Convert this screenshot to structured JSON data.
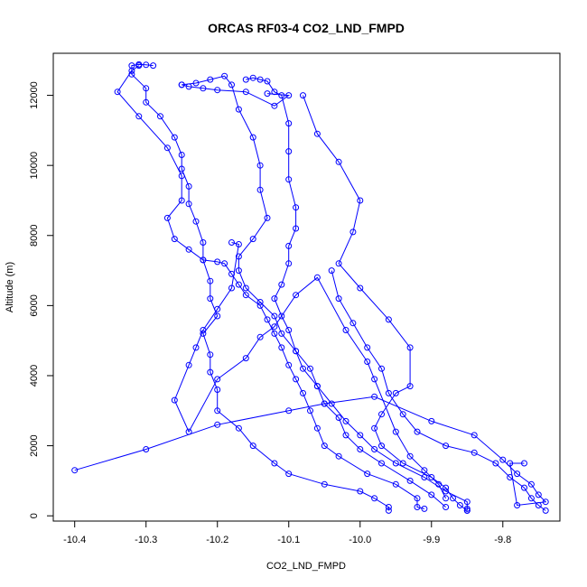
{
  "chart_data": {
    "type": "scatter",
    "title": "ORCAS RF03-4 CO2_LND_FMPD",
    "xlabel": "CO2_LND_FMPD",
    "ylabel": "Altitude (m)",
    "xlim": [
      -10.43,
      -9.72
    ],
    "ylim": [
      -150,
      13200
    ],
    "x_ticks": [
      -10.4,
      -10.3,
      -10.2,
      -10.1,
      -10.0,
      -9.9,
      -9.8
    ],
    "x_tick_labels": [
      "-10.4",
      "-10.3",
      "-10.2",
      "-10.1",
      "-10.0",
      "-9.9",
      "-9.8"
    ],
    "y_ticks": [
      0,
      2000,
      4000,
      6000,
      8000,
      10000,
      12000
    ],
    "y_tick_labels": [
      "0",
      "2000",
      "4000",
      "6000",
      "8000",
      "10000",
      "12000"
    ],
    "grid": false,
    "marker": "open-circle",
    "color": "#0000ff",
    "series": [
      {
        "points": [
          [
            -9.96,
            150
          ],
          [
            -9.96,
            250
          ],
          [
            -9.98,
            500
          ],
          [
            -10.0,
            700
          ],
          [
            -10.05,
            900
          ],
          [
            -10.1,
            1200
          ],
          [
            -10.12,
            1500
          ],
          [
            -10.15,
            2000
          ],
          [
            -10.17,
            2500
          ],
          [
            -10.2,
            3000
          ],
          [
            -10.2,
            3600
          ],
          [
            -10.21,
            4100
          ],
          [
            -10.21,
            4600
          ],
          [
            -10.22,
            5200
          ],
          [
            -10.2,
            5700
          ],
          [
            -10.21,
            6200
          ],
          [
            -10.21,
            6700
          ],
          [
            -10.22,
            7300
          ],
          [
            -10.22,
            7800
          ],
          [
            -10.23,
            8400
          ],
          [
            -10.24,
            8900
          ],
          [
            -10.24,
            9400
          ],
          [
            -10.25,
            9900
          ],
          [
            -10.25,
            10300
          ],
          [
            -10.26,
            10800
          ],
          [
            -10.28,
            11400
          ],
          [
            -10.3,
            11800
          ],
          [
            -10.3,
            12200
          ],
          [
            -10.32,
            12600
          ],
          [
            -10.32,
            12850
          ],
          [
            -10.31,
            12880
          ],
          [
            -10.3,
            12870
          ],
          [
            -10.29,
            12850
          ]
        ]
      },
      {
        "points": [
          [
            -10.31,
            12850
          ],
          [
            -10.32,
            12700
          ],
          [
            -10.34,
            12100
          ],
          [
            -10.31,
            11400
          ],
          [
            -10.27,
            10500
          ],
          [
            -10.25,
            9700
          ],
          [
            -10.25,
            9000
          ],
          [
            -10.27,
            8500
          ],
          [
            -10.26,
            7900
          ],
          [
            -10.24,
            7600
          ],
          [
            -10.22,
            7300
          ],
          [
            -10.2,
            7250
          ],
          [
            -10.19,
            7200
          ],
          [
            -10.18,
            6900
          ],
          [
            -10.17,
            6600
          ],
          [
            -10.16,
            6300
          ],
          [
            -10.14,
            6000
          ],
          [
            -10.13,
            5600
          ],
          [
            -10.12,
            5200
          ],
          [
            -10.11,
            4800
          ],
          [
            -10.1,
            4300
          ],
          [
            -10.09,
            3900
          ],
          [
            -10.08,
            3500
          ],
          [
            -10.07,
            3000
          ],
          [
            -10.06,
            2500
          ],
          [
            -10.05,
            2000
          ],
          [
            -10.03,
            1700
          ],
          [
            -9.99,
            1200
          ],
          [
            -9.95,
            900
          ],
          [
            -9.92,
            500
          ],
          [
            -9.92,
            250
          ],
          [
            -9.91,
            200
          ]
        ]
      },
      {
        "points": [
          [
            -10.25,
            12300
          ],
          [
            -10.23,
            12350
          ],
          [
            -10.21,
            12450
          ],
          [
            -10.19,
            12550
          ],
          [
            -10.18,
            12300
          ],
          [
            -10.17,
            11600
          ],
          [
            -10.15,
            10800
          ],
          [
            -10.14,
            10000
          ],
          [
            -10.14,
            9300
          ],
          [
            -10.13,
            8500
          ],
          [
            -10.15,
            7900
          ],
          [
            -10.17,
            7400
          ],
          [
            -10.17,
            7000
          ],
          [
            -10.16,
            6500
          ],
          [
            -10.14,
            6100
          ],
          [
            -10.12,
            5700
          ],
          [
            -10.11,
            5200
          ],
          [
            -10.09,
            4700
          ],
          [
            -10.07,
            4200
          ],
          [
            -10.06,
            3700
          ],
          [
            -10.05,
            3200
          ],
          [
            -10.03,
            2800
          ],
          [
            -10.02,
            2300
          ],
          [
            -10.0,
            1900
          ],
          [
            -9.97,
            1500
          ],
          [
            -9.93,
            1000
          ],
          [
            -9.9,
            600
          ],
          [
            -9.88,
            250
          ]
        ]
      },
      {
        "points": [
          [
            -10.16,
            12450
          ],
          [
            -10.15,
            12500
          ],
          [
            -10.14,
            12450
          ],
          [
            -10.13,
            12400
          ],
          [
            -10.12,
            12100
          ],
          [
            -10.11,
            12000
          ],
          [
            -10.1,
            11200
          ],
          [
            -10.1,
            10400
          ],
          [
            -10.1,
            9600
          ],
          [
            -10.09,
            8800
          ],
          [
            -10.09,
            8200
          ],
          [
            -10.1,
            7700
          ],
          [
            -10.1,
            7200
          ],
          [
            -10.11,
            6600
          ],
          [
            -10.12,
            6200
          ],
          [
            -10.11,
            5700
          ],
          [
            -10.1,
            5300
          ],
          [
            -10.09,
            4700
          ],
          [
            -10.08,
            4200
          ],
          [
            -10.06,
            3700
          ],
          [
            -10.04,
            3200
          ],
          [
            -10.02,
            2700
          ],
          [
            -10.0,
            2300
          ],
          [
            -9.98,
            1900
          ],
          [
            -9.95,
            1500
          ],
          [
            -9.91,
            1100
          ],
          [
            -9.88,
            700
          ],
          [
            -9.85,
            400
          ],
          [
            -9.85,
            200
          ],
          [
            -9.85,
            150
          ]
        ]
      },
      {
        "points": [
          [
            -10.08,
            12000
          ],
          [
            -10.06,
            10900
          ],
          [
            -10.03,
            10100
          ],
          [
            -10.0,
            9000
          ],
          [
            -10.01,
            8100
          ],
          [
            -10.03,
            7200
          ],
          [
            -10.0,
            6500
          ],
          [
            -9.96,
            5600
          ],
          [
            -9.93,
            4800
          ],
          [
            -9.93,
            3700
          ],
          [
            -9.95,
            3500
          ],
          [
            -9.97,
            2900
          ],
          [
            -9.98,
            2500
          ],
          [
            -9.97,
            2000
          ],
          [
            -9.94,
            1500
          ],
          [
            -9.9,
            1100
          ],
          [
            -9.88,
            800
          ],
          [
            -9.87,
            500
          ],
          [
            -9.86,
            300
          ],
          [
            -9.85,
            150
          ]
        ]
      },
      {
        "points": [
          [
            -10.04,
            7000
          ],
          [
            -10.03,
            6200
          ],
          [
            -10.01,
            5500
          ],
          [
            -9.99,
            4800
          ],
          [
            -9.97,
            4200
          ],
          [
            -9.96,
            3500
          ],
          [
            -9.94,
            2900
          ],
          [
            -9.92,
            2400
          ],
          [
            -9.88,
            2000
          ],
          [
            -9.84,
            1800
          ],
          [
            -9.81,
            1500
          ],
          [
            -9.79,
            1100
          ],
          [
            -9.77,
            800
          ],
          [
            -9.76,
            500
          ],
          [
            -9.75,
            300
          ],
          [
            -9.74,
            150
          ]
        ]
      },
      {
        "points": [
          [
            -10.13,
            12050
          ],
          [
            -10.1,
            12000
          ],
          [
            -10.12,
            11700
          ],
          [
            -10.16,
            12100
          ],
          [
            -10.2,
            12150
          ],
          [
            -10.22,
            12200
          ],
          [
            -10.24,
            12250
          ],
          [
            -10.25,
            12300
          ]
        ]
      },
      {
        "points": [
          [
            -10.4,
            1300
          ],
          [
            -10.3,
            1900
          ],
          [
            -10.2,
            2600
          ],
          [
            -10.1,
            3000
          ],
          [
            -10.05,
            3200
          ],
          [
            -9.98,
            3400
          ],
          [
            -9.9,
            2700
          ],
          [
            -9.84,
            2300
          ],
          [
            -9.8,
            1600
          ],
          [
            -9.78,
            1200
          ],
          [
            -9.76,
            900
          ],
          [
            -9.75,
            600
          ],
          [
            -9.74,
            400
          ],
          [
            -9.78,
            300
          ],
          [
            -9.79,
            1500
          ],
          [
            -9.77,
            1500
          ]
        ]
      },
      {
        "points": [
          [
            -10.18,
            7800
          ],
          [
            -10.17,
            7750
          ],
          [
            -10.18,
            6500
          ],
          [
            -10.2,
            5900
          ],
          [
            -10.22,
            5300
          ],
          [
            -10.23,
            4800
          ],
          [
            -10.24,
            4300
          ],
          [
            -10.26,
            3300
          ],
          [
            -10.24,
            2400
          ],
          [
            -10.2,
            3900
          ],
          [
            -10.16,
            4500
          ],
          [
            -10.14,
            5100
          ],
          [
            -10.12,
            5400
          ],
          [
            -10.09,
            6300
          ],
          [
            -10.06,
            6800
          ],
          [
            -10.02,
            5300
          ],
          [
            -9.99,
            4400
          ],
          [
            -9.98,
            3900
          ],
          [
            -9.95,
            2400
          ],
          [
            -9.93,
            1700
          ],
          [
            -9.91,
            1300
          ],
          [
            -9.89,
            900
          ],
          [
            -9.88,
            500
          ]
        ]
      }
    ]
  }
}
